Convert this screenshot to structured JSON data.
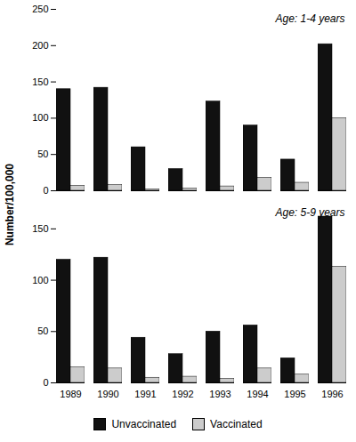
{
  "chart_data": [
    {
      "type": "bar",
      "annotations": [
        "Age: 1-4 years"
      ],
      "ylabel": "Number/100,000",
      "categories": [
        1989,
        1990,
        1991,
        1992,
        1993,
        1994,
        1995,
        1996
      ],
      "series": [
        {
          "name": "Unvaccinated",
          "color": "#111111",
          "values": [
            140,
            142,
            60,
            30,
            123,
            90,
            43,
            202
          ]
        },
        {
          "name": "Vaccinated",
          "color": "#cccccc",
          "values": [
            7,
            8,
            2,
            3,
            6,
            18,
            11,
            100
          ]
        }
      ],
      "ylim": [
        0,
        250
      ],
      "yticks": [
        0,
        50,
        100,
        150,
        200,
        250
      ],
      "tick_labels": "y"
    },
    {
      "type": "bar",
      "annotations": [
        "Age: 5-9 years"
      ],
      "categories": [
        1989,
        1990,
        1991,
        1992,
        1993,
        1994,
        1995,
        1996
      ],
      "series": [
        {
          "name": "Unvaccinated",
          "color": "#111111",
          "values": [
            120,
            122,
            44,
            28,
            50,
            56,
            24,
            162
          ]
        },
        {
          "name": "Vaccinated",
          "color": "#cccccc",
          "values": [
            15,
            14,
            5,
            6,
            4,
            14,
            8,
            113
          ]
        }
      ],
      "ylim": [
        0,
        175
      ],
      "yticks": [
        0,
        50,
        100,
        150
      ],
      "legend": "bottom"
    }
  ]
}
